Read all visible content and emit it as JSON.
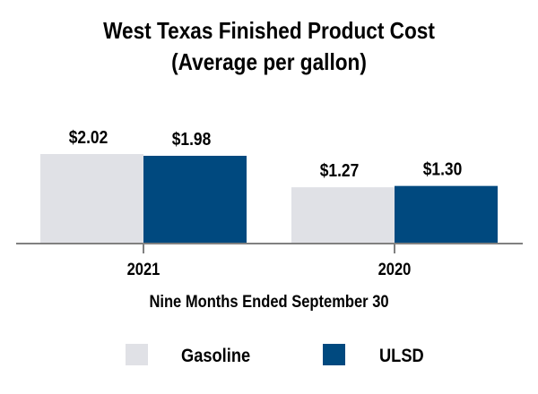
{
  "chart_data": {
    "type": "bar",
    "title": "West Texas Finished Product Cost",
    "subtitle": "(Average per gallon)",
    "xlabel": "Nine Months Ended September 30",
    "ylabel": "",
    "categories": [
      "2021",
      "2020"
    ],
    "series": [
      {
        "name": "Gasoline",
        "color": "#e0e1e6",
        "values": [
          2.02,
          1.27
        ],
        "labels": [
          "$2.02",
          "$1.27"
        ]
      },
      {
        "name": "ULSD",
        "color": "#00497f",
        "values": [
          1.98,
          1.3
        ],
        "labels": [
          "$1.98",
          "$1.30"
        ]
      }
    ],
    "ylim": [
      0,
      2.02
    ],
    "grid": false,
    "y_axis_visible": false,
    "legend_position": "bottom",
    "axis_color": "#808080"
  }
}
